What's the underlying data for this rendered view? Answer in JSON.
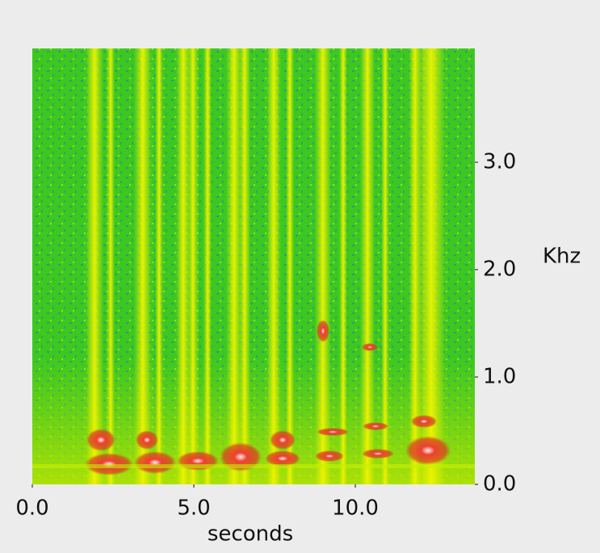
{
  "chart_data": {
    "type": "spectrogram",
    "x_label": "seconds",
    "y_label": "Khz",
    "xlim": [
      0,
      13.7
    ],
    "ylim": [
      0,
      4.06
    ],
    "xticks": [
      {
        "value": 0,
        "label": "0.0"
      },
      {
        "value": 5,
        "label": "5.0"
      },
      {
        "value": 10,
        "label": "10.0"
      }
    ],
    "yticks": [
      {
        "value": 0,
        "label": "0.0"
      },
      {
        "value": 1,
        "label": "1.0"
      },
      {
        "value": 2,
        "label": "2.0"
      },
      {
        "value": 3,
        "label": "3.0"
      }
    ]
  }
}
